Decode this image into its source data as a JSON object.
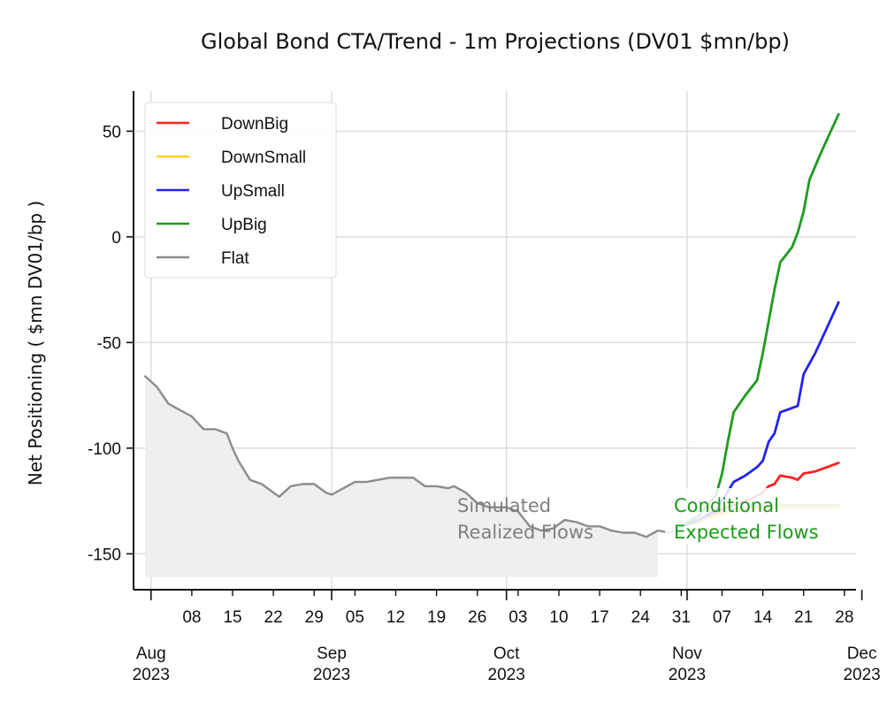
{
  "chart_data": {
    "type": "line",
    "title": "Global Bond CTA/Trend -  1m Projections (DV01 $mn/bp)",
    "ylabel": "Net Positioning  ( $mn DV01/bp )",
    "xlabel": "",
    "ylim": [
      -167,
      69
    ],
    "yticks": [
      50,
      0,
      -50,
      -100,
      -150
    ],
    "xlim": [
      "2023-07-29",
      "2023-11-30"
    ],
    "x_day_ticks": [
      {
        "date": "2023-08-01",
        "label": ""
      },
      {
        "date": "2023-08-08",
        "label": "08"
      },
      {
        "date": "2023-08-15",
        "label": "15"
      },
      {
        "date": "2023-08-22",
        "label": "22"
      },
      {
        "date": "2023-08-29",
        "label": "29"
      },
      {
        "date": "2023-09-05",
        "label": "05"
      },
      {
        "date": "2023-09-12",
        "label": "12"
      },
      {
        "date": "2023-09-19",
        "label": "19"
      },
      {
        "date": "2023-09-26",
        "label": "26"
      },
      {
        "date": "2023-10-03",
        "label": "03"
      },
      {
        "date": "2023-10-10",
        "label": "10"
      },
      {
        "date": "2023-10-17",
        "label": "17"
      },
      {
        "date": "2023-10-24",
        "label": "24"
      },
      {
        "date": "2023-10-31",
        "label": "31"
      },
      {
        "date": "2023-11-07",
        "label": "07"
      },
      {
        "date": "2023-11-14",
        "label": "14"
      },
      {
        "date": "2023-11-21",
        "label": "21"
      },
      {
        "date": "2023-11-28",
        "label": "28"
      }
    ],
    "x_month_ticks": [
      {
        "date": "2023-08-01",
        "label": [
          "Aug",
          "2023"
        ]
      },
      {
        "date": "2023-09-01",
        "label": [
          "Sep",
          "2023"
        ]
      },
      {
        "date": "2023-10-01",
        "label": [
          "Oct",
          "2023"
        ]
      },
      {
        "date": "2023-11-01",
        "label": [
          "Nov",
          "2023"
        ]
      },
      {
        "date": "2023-12-01",
        "label": [
          "Dec",
          "2023"
        ]
      }
    ],
    "grid": true,
    "legend_position": "top-left",
    "realized_fill": {
      "x_start": "2023-07-31",
      "x_end": "2023-10-27",
      "floor": -161,
      "color": "#efefef"
    },
    "series": [
      {
        "name": "Flat",
        "color": "#8c8c8c",
        "points": [
          [
            "2023-07-31",
            -66
          ],
          [
            "2023-08-02",
            -71
          ],
          [
            "2023-08-04",
            -79
          ],
          [
            "2023-08-06",
            -82
          ],
          [
            "2023-08-08",
            -85
          ],
          [
            "2023-08-10",
            -91
          ],
          [
            "2023-08-12",
            -91
          ],
          [
            "2023-08-14",
            -93
          ],
          [
            "2023-08-15",
            -100
          ],
          [
            "2023-08-16",
            -106
          ],
          [
            "2023-08-18",
            -115
          ],
          [
            "2023-08-20",
            -117
          ],
          [
            "2023-08-22",
            -121
          ],
          [
            "2023-08-23",
            -123
          ],
          [
            "2023-08-25",
            -118
          ],
          [
            "2023-08-27",
            -117
          ],
          [
            "2023-08-29",
            -117
          ],
          [
            "2023-08-31",
            -121
          ],
          [
            "2023-09-01",
            -122
          ],
          [
            "2023-09-03",
            -119
          ],
          [
            "2023-09-05",
            -116
          ],
          [
            "2023-09-07",
            -116
          ],
          [
            "2023-09-09",
            -115
          ],
          [
            "2023-09-11",
            -114
          ],
          [
            "2023-09-13",
            -114
          ],
          [
            "2023-09-15",
            -114
          ],
          [
            "2023-09-17",
            -118
          ],
          [
            "2023-09-19",
            -118
          ],
          [
            "2023-09-21",
            -119
          ],
          [
            "2023-09-22",
            -118
          ],
          [
            "2023-09-24",
            -121
          ],
          [
            "2023-09-26",
            -126
          ],
          [
            "2023-09-28",
            -128
          ],
          [
            "2023-10-01",
            -128
          ],
          [
            "2023-10-03",
            -130
          ],
          [
            "2023-10-05",
            -137
          ],
          [
            "2023-10-07",
            -139
          ],
          [
            "2023-10-09",
            -138
          ],
          [
            "2023-10-11",
            -134
          ],
          [
            "2023-10-13",
            -135
          ],
          [
            "2023-10-15",
            -137
          ],
          [
            "2023-10-17",
            -137
          ],
          [
            "2023-10-19",
            -139
          ],
          [
            "2023-10-21",
            -140
          ],
          [
            "2023-10-23",
            -140
          ],
          [
            "2023-10-25",
            -142
          ],
          [
            "2023-10-27",
            -139
          ],
          [
            "2023-10-29",
            -140
          ],
          [
            "2023-10-31",
            -137
          ],
          [
            "2023-11-03",
            -134
          ],
          [
            "2023-11-06",
            -131
          ],
          [
            "2023-11-09",
            -129
          ],
          [
            "2023-11-12",
            -128
          ],
          [
            "2023-11-15",
            -127
          ],
          [
            "2023-11-18",
            -127
          ],
          [
            "2023-11-21",
            -127
          ],
          [
            "2023-11-24",
            -127
          ],
          [
            "2023-11-27",
            -127
          ]
        ]
      },
      {
        "name": "DownSmall",
        "color": "#ffd21f",
        "points": [
          [
            "2023-10-31",
            -137
          ],
          [
            "2023-11-03",
            -135
          ],
          [
            "2023-11-06",
            -132
          ],
          [
            "2023-11-09",
            -130
          ],
          [
            "2023-11-12",
            -129
          ],
          [
            "2023-11-15",
            -128
          ],
          [
            "2023-11-18",
            -128
          ],
          [
            "2023-11-21",
            -128
          ],
          [
            "2023-11-24",
            -128
          ],
          [
            "2023-11-27",
            -128
          ]
        ]
      },
      {
        "name": "DownBig",
        "color": "#ff2020",
        "points": [
          [
            "2023-10-31",
            -137
          ],
          [
            "2023-11-03",
            -134
          ],
          [
            "2023-11-06",
            -130
          ],
          [
            "2023-11-09",
            -127
          ],
          [
            "2023-11-12",
            -124
          ],
          [
            "2023-11-14",
            -121
          ],
          [
            "2023-11-15",
            -118
          ],
          [
            "2023-11-16",
            -117
          ],
          [
            "2023-11-17",
            -113
          ],
          [
            "2023-11-19",
            -114
          ],
          [
            "2023-11-20",
            -115
          ],
          [
            "2023-11-21",
            -112
          ],
          [
            "2023-11-23",
            -111
          ],
          [
            "2023-11-25",
            -109
          ],
          [
            "2023-11-27",
            -107
          ]
        ]
      },
      {
        "name": "UpSmall",
        "color": "#2323f0",
        "points": [
          [
            "2023-10-31",
            -137
          ],
          [
            "2023-11-03",
            -134
          ],
          [
            "2023-11-06",
            -129
          ],
          [
            "2023-11-07",
            -125
          ],
          [
            "2023-11-09",
            -116
          ],
          [
            "2023-11-11",
            -113
          ],
          [
            "2023-11-13",
            -109
          ],
          [
            "2023-11-14",
            -106
          ],
          [
            "2023-11-15",
            -97
          ],
          [
            "2023-11-16",
            -93
          ],
          [
            "2023-11-17",
            -83
          ],
          [
            "2023-11-18",
            -82
          ],
          [
            "2023-11-19",
            -81
          ],
          [
            "2023-11-20",
            -80
          ],
          [
            "2023-11-21",
            -65
          ],
          [
            "2023-11-23",
            -55
          ],
          [
            "2023-11-25",
            -43
          ],
          [
            "2023-11-27",
            -31
          ]
        ]
      },
      {
        "name": "UpBig",
        "color": "#1e9a1e",
        "points": [
          [
            "2023-10-31",
            -137
          ],
          [
            "2023-11-03",
            -132
          ],
          [
            "2023-11-06",
            -122
          ],
          [
            "2023-11-07",
            -112
          ],
          [
            "2023-11-08",
            -97
          ],
          [
            "2023-11-09",
            -83
          ],
          [
            "2023-11-11",
            -75
          ],
          [
            "2023-11-13",
            -68
          ],
          [
            "2023-11-14",
            -55
          ],
          [
            "2023-11-15",
            -40
          ],
          [
            "2023-11-16",
            -25
          ],
          [
            "2023-11-17",
            -12
          ],
          [
            "2023-11-19",
            -5
          ],
          [
            "2023-11-20",
            2
          ],
          [
            "2023-11-21",
            12
          ],
          [
            "2023-11-22",
            27
          ],
          [
            "2023-11-24",
            40
          ],
          [
            "2023-11-27",
            58
          ]
        ]
      }
    ],
    "legend_order": [
      "DownBig",
      "DownSmall",
      "UpSmall",
      "UpBig",
      "Flat"
    ],
    "annotations": [
      {
        "key": "realized",
        "lines": [
          "Simulated",
          "Realized Flows"
        ],
        "color": "#7f7f7f"
      },
      {
        "key": "expected",
        "lines": [
          "Conditional",
          "Expected Flows"
        ],
        "color": "#1e9a1e"
      }
    ]
  }
}
